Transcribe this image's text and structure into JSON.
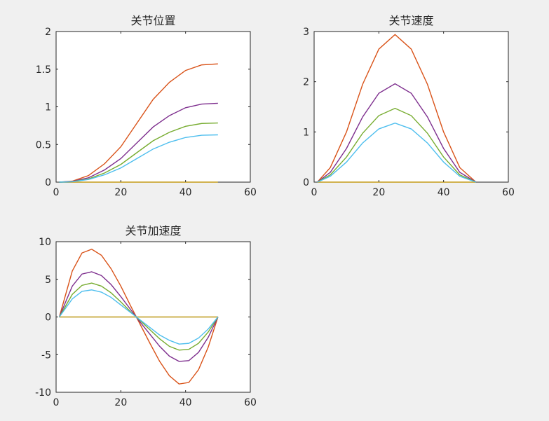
{
  "chart_data": [
    {
      "type": "line",
      "title": "关节位置",
      "xlim": [
        0,
        60
      ],
      "ylim": [
        0,
        2
      ],
      "xticks": [
        0,
        20,
        40,
        60
      ],
      "yticks": [
        0,
        0.5,
        1,
        1.5,
        2
      ],
      "grid": false,
      "x": [
        1,
        5,
        10,
        15,
        20,
        25,
        30,
        35,
        40,
        45,
        50
      ],
      "series": [
        {
          "color": "#0072BD",
          "values": [
            0,
            0.0,
            0.0,
            0.0,
            0.0,
            0.0,
            0.0,
            0.0,
            0.0,
            0.0,
            0.0
          ]
        },
        {
          "color": "#D95319",
          "values": [
            0,
            0.013,
            0.087,
            0.245,
            0.47,
            0.785,
            1.1,
            1.325,
            1.483,
            1.557,
            1.57
          ]
        },
        {
          "color": "#EDB120",
          "values": [
            0,
            0.0,
            0.0,
            0.0,
            0.0,
            0.0,
            0.0,
            0.0,
            0.0,
            0.0,
            0.0
          ]
        },
        {
          "color": "#7E2F8E",
          "values": [
            0,
            0.009,
            0.058,
            0.163,
            0.313,
            0.523,
            0.733,
            0.883,
            0.988,
            1.037,
            1.047
          ]
        },
        {
          "color": "#77AC30",
          "values": [
            0,
            0.006,
            0.043,
            0.122,
            0.235,
            0.393,
            0.55,
            0.662,
            0.741,
            0.779,
            0.785
          ]
        },
        {
          "color": "#4DBEEE",
          "values": [
            0,
            0.005,
            0.035,
            0.098,
            0.188,
            0.314,
            0.44,
            0.53,
            0.593,
            0.623,
            0.628
          ]
        }
      ]
    },
    {
      "type": "line",
      "title": "关节速度",
      "xlim": [
        0,
        60
      ],
      "ylim": [
        0,
        3
      ],
      "xticks": [
        0,
        20,
        40,
        60
      ],
      "yticks": [
        0,
        1,
        2,
        3
      ],
      "grid": false,
      "x": [
        1,
        5,
        10,
        15,
        20,
        25,
        30,
        35,
        40,
        45,
        50
      ],
      "series": [
        {
          "color": "#0072BD",
          "values": [
            0,
            0.0,
            0.0,
            0.0,
            0.0,
            0.0,
            0.0,
            0.0,
            0.0,
            0.0,
            0.0
          ]
        },
        {
          "color": "#D95319",
          "values": [
            0,
            0.29,
            1.0,
            1.95,
            2.65,
            2.94,
            2.65,
            1.95,
            1.0,
            0.29,
            0
          ]
        },
        {
          "color": "#EDB120",
          "values": [
            0,
            0.0,
            0.0,
            0.0,
            0.0,
            0.0,
            0.0,
            0.0,
            0.0,
            0.0,
            0.0
          ]
        },
        {
          "color": "#7E2F8E",
          "values": [
            0,
            0.195,
            0.67,
            1.3,
            1.77,
            1.96,
            1.77,
            1.3,
            0.67,
            0.195,
            0
          ]
        },
        {
          "color": "#77AC30",
          "values": [
            0,
            0.145,
            0.5,
            0.975,
            1.325,
            1.47,
            1.325,
            0.975,
            0.5,
            0.145,
            0
          ]
        },
        {
          "color": "#4DBEEE",
          "values": [
            0,
            0.116,
            0.4,
            0.78,
            1.06,
            1.176,
            1.06,
            0.78,
            0.4,
            0.116,
            0
          ]
        }
      ]
    },
    {
      "type": "line",
      "title": "关节加速度",
      "xlim": [
        0,
        60
      ],
      "ylim": [
        -10,
        10
      ],
      "xticks": [
        0,
        20,
        40,
        60
      ],
      "yticks": [
        -10,
        -5,
        0,
        5,
        10
      ],
      "grid": false,
      "x": [
        1,
        5,
        8,
        11,
        14,
        17,
        20,
        23,
        26,
        29,
        32,
        35,
        38,
        41,
        44,
        47,
        50
      ],
      "series": [
        {
          "color": "#0072BD",
          "values": [
            0,
            0,
            0,
            0,
            0,
            0,
            0,
            0,
            0,
            0,
            0,
            0,
            0,
            0,
            0,
            0,
            0
          ]
        },
        {
          "color": "#D95319",
          "values": [
            0,
            6.1,
            8.5,
            9.0,
            8.2,
            6.4,
            4.1,
            1.5,
            -1.0,
            -3.5,
            -5.9,
            -7.8,
            -8.9,
            -8.7,
            -7.0,
            -4.0,
            0
          ]
        },
        {
          "color": "#EDB120",
          "values": [
            0,
            0,
            0,
            0,
            0,
            0,
            0,
            0,
            0,
            0,
            0,
            0,
            0,
            0,
            0,
            0,
            0
          ]
        },
        {
          "color": "#7E2F8E",
          "values": [
            0,
            4.1,
            5.7,
            6.0,
            5.5,
            4.3,
            2.7,
            1.0,
            -0.7,
            -2.3,
            -3.9,
            -5.2,
            -5.9,
            -5.8,
            -4.7,
            -2.7,
            0
          ]
        },
        {
          "color": "#77AC30",
          "values": [
            0,
            3.0,
            4.2,
            4.5,
            4.1,
            3.2,
            2.0,
            0.7,
            -0.5,
            -1.7,
            -2.9,
            -3.9,
            -4.4,
            -4.3,
            -3.5,
            -2.0,
            0
          ]
        },
        {
          "color": "#4DBEEE",
          "values": [
            0,
            2.4,
            3.4,
            3.6,
            3.3,
            2.6,
            1.6,
            0.6,
            -0.4,
            -1.4,
            -2.4,
            -3.1,
            -3.6,
            -3.5,
            -2.8,
            -1.6,
            0
          ]
        }
      ]
    }
  ]
}
